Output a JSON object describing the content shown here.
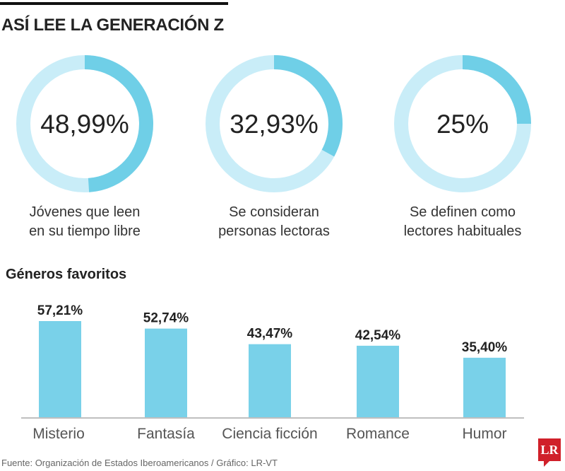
{
  "title": "ASÍ LEE LA GENERACIÓN Z",
  "colors": {
    "ring_light": "#c9edf8",
    "ring_dark": "#6fcfe7",
    "bar": "#79d1e9",
    "logo": "#d0202a"
  },
  "donuts": [
    {
      "value": 48.99,
      "value_label": "48,99%",
      "label_line1": "Jóvenes que leen",
      "label_line2": "en su tiempo libre"
    },
    {
      "value": 32.93,
      "value_label": "32,93%",
      "label_line1": "Se consideran",
      "label_line2": "personas lectoras"
    },
    {
      "value": 25,
      "value_label": "25%",
      "label_line1": "Se definen como",
      "label_line2": "lectores habituales"
    }
  ],
  "chart_data": {
    "type": "bar",
    "title": "Géneros favoritos",
    "categories": [
      "Misterio",
      "Fantasía",
      "Ciencia ficción",
      "Romance",
      "Humor"
    ],
    "values": [
      57.21,
      52.74,
      43.47,
      42.54,
      35.4
    ],
    "data_labels": [
      "57,21%",
      "52,74%",
      "43,47%",
      "42,54%",
      "35,40%"
    ],
    "ylim": [
      0,
      57.21
    ],
    "grid": false
  },
  "footer": "Fuente: Organización de Estados Iberoamericanos / Gráfico: LR-VT",
  "logo_text": "LR"
}
